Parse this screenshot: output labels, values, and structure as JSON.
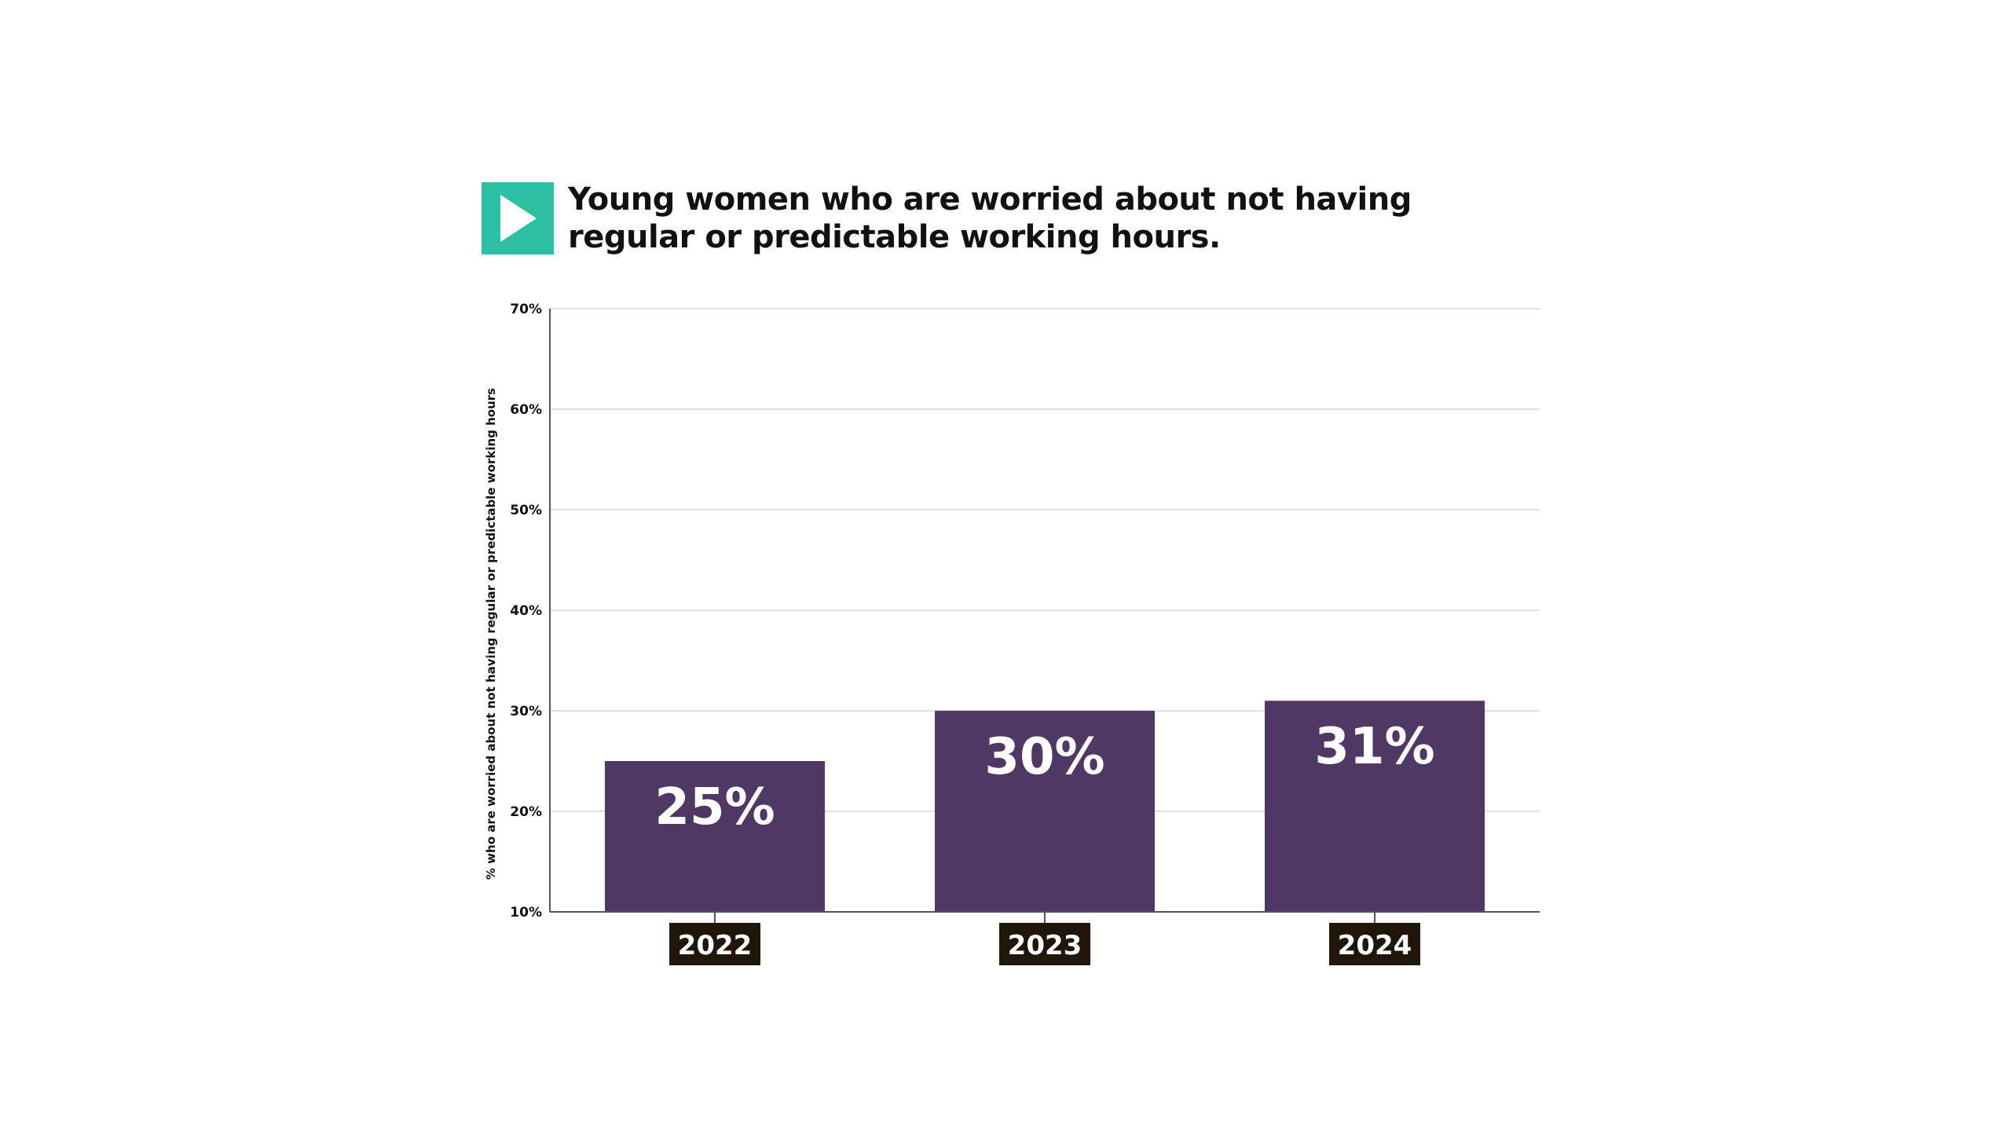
{
  "header": {
    "title": "Young women who are worried about not having\nregular or predictable working hours."
  },
  "colors": {
    "accent": "#2bbfa4",
    "bar": "#4f3864",
    "category_box": "#1e1609",
    "grid": "#d6d6d6",
    "axis": "#555555"
  },
  "icons": {
    "logo": "play-arrow-icon"
  },
  "chart_data": {
    "type": "bar",
    "categories": [
      "2022",
      "2023",
      "2024"
    ],
    "values": [
      25,
      30,
      31
    ],
    "data_labels": [
      "25%",
      "30%",
      "31%"
    ],
    "title": "Young women who are worried about not having regular or predictable working hours.",
    "xlabel": "",
    "ylabel": "% who are worried about not having regular or predictable working hours",
    "ylim": [
      10,
      70
    ],
    "yticks": [
      10,
      20,
      30,
      40,
      50,
      60,
      70
    ],
    "ytick_labels": [
      "10%",
      "20%",
      "30%",
      "40%",
      "50%",
      "60%",
      "70%"
    ],
    "grid": true,
    "legend": "none"
  }
}
